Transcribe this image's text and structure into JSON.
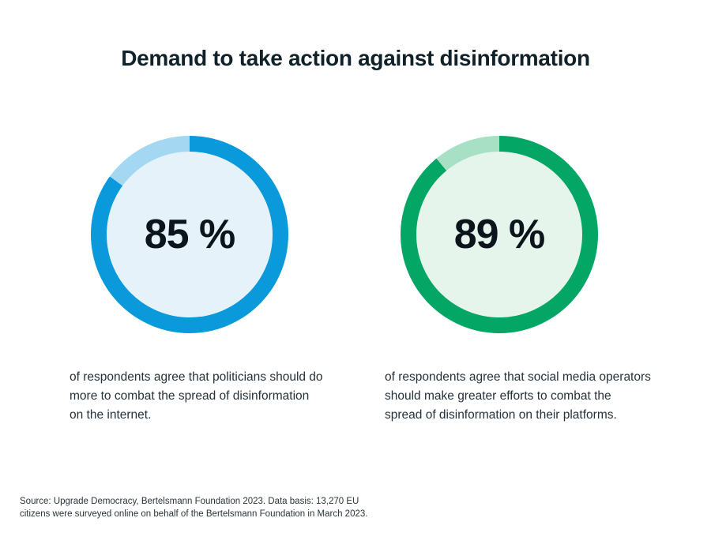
{
  "title": "Demand to take action against disinformation",
  "chart_data": {
    "type": "pie",
    "subtype": "donut",
    "title": "Demand to take action against disinformation",
    "legend_position": "none",
    "grid": false,
    "charts": [
      {
        "name": "politicians",
        "label": "85 %",
        "value": 85,
        "remainder": 15,
        "ring_color": "#0a99db",
        "remainder_color": "#a3d7f2",
        "fill_color": "#e6f2fa",
        "caption": "of respondents agree that politicians should do more to combat the spread of disinformation on the internet."
      },
      {
        "name": "social-media-operators",
        "label": "89 %",
        "value": 89,
        "remainder": 11,
        "ring_color": "#04a665",
        "remainder_color": "#a8e0c5",
        "fill_color": "#e6f5ec",
        "caption": "of respondents agree that social media operators should make greater efforts to combat the spread of disinformation on their platforms."
      }
    ]
  },
  "source": "Source: Upgrade Democracy, Bertelsmann Foundation 2023. Data basis: 13,270 EU citizens were surveyed online on behalf of the Bertelsmann Foundation in March 2023."
}
